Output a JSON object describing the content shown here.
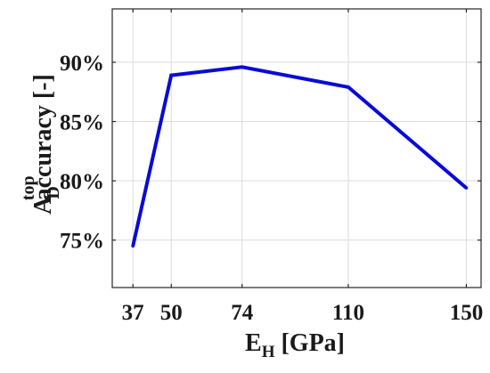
{
  "chart_data": {
    "type": "line",
    "x": [
      37,
      50,
      74,
      110,
      150
    ],
    "series": [
      {
        "values": [
          74.5,
          88.9,
          89.6,
          87.9,
          79.4
        ],
        "color": "#0a0ad6"
      }
    ],
    "xticks": [
      37,
      50,
      74,
      110,
      150
    ],
    "xtick_labels": [
      "37",
      "50",
      "74",
      "110",
      "150"
    ],
    "yticks": [
      75,
      80,
      85,
      90
    ],
    "ytick_labels": [
      "75%",
      "80%",
      "85%",
      "90%"
    ],
    "xlim": [
      30,
      155
    ],
    "ylim": [
      71,
      94.5
    ],
    "xlabel": {
      "main": "E",
      "sub": "H",
      "rest": " [GPa]"
    },
    "ylabel": {
      "main": "A",
      "sub": "D",
      "sup": "top",
      "rest": "accuracy [-]"
    },
    "grid": true
  }
}
